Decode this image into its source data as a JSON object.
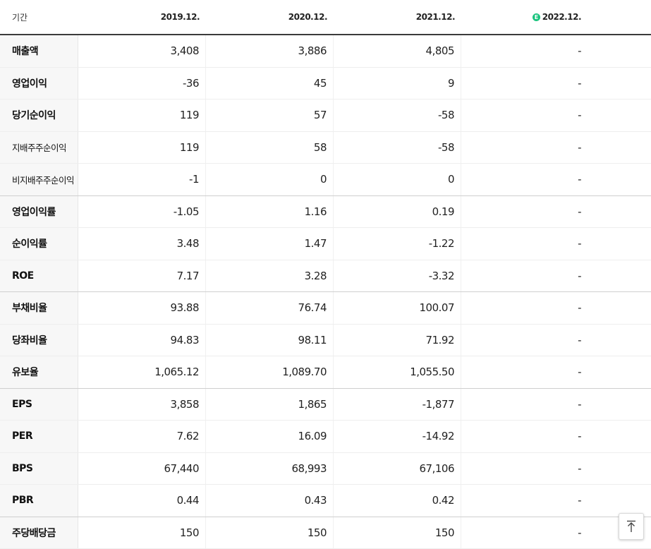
{
  "header": {
    "label": "기간",
    "periods": [
      "2019.12.",
      "2020.12.",
      "2021.12.",
      "2022.12."
    ],
    "estimate_badge": "E"
  },
  "rows": [
    {
      "label": "매출액",
      "values": [
        "3,408",
        "3,886",
        "4,805",
        "-"
      ]
    },
    {
      "label": "영업이익",
      "values": [
        "-36",
        "45",
        "9",
        "-"
      ]
    },
    {
      "label": "당기순이익",
      "values": [
        "119",
        "57",
        "-58",
        "-"
      ]
    },
    {
      "label": "지배주주순이익",
      "values": [
        "119",
        "58",
        "-58",
        "-"
      ]
    },
    {
      "label": "비지배주주순이익",
      "values": [
        "-1",
        "0",
        "0",
        "-"
      ]
    },
    {
      "label": "영업이익률",
      "values": [
        "-1.05",
        "1.16",
        "0.19",
        "-"
      ]
    },
    {
      "label": "순이익률",
      "values": [
        "3.48",
        "1.47",
        "-1.22",
        "-"
      ]
    },
    {
      "label": "ROE",
      "values": [
        "7.17",
        "3.28",
        "-3.32",
        "-"
      ]
    },
    {
      "label": "부채비율",
      "values": [
        "93.88",
        "76.74",
        "100.07",
        "-"
      ]
    },
    {
      "label": "당좌비율",
      "values": [
        "94.83",
        "98.11",
        "71.92",
        "-"
      ]
    },
    {
      "label": "유보율",
      "values": [
        "1,065.12",
        "1,089.70",
        "1,055.50",
        "-"
      ]
    },
    {
      "label": "EPS",
      "values": [
        "3,858",
        "1,865",
        "-1,877",
        "-"
      ]
    },
    {
      "label": "PER",
      "values": [
        "7.62",
        "16.09",
        "-14.92",
        "-"
      ]
    },
    {
      "label": "BPS",
      "values": [
        "67,440",
        "68,993",
        "67,106",
        "-"
      ]
    },
    {
      "label": "PBR",
      "values": [
        "0.44",
        "0.43",
        "0.42",
        "-"
      ]
    },
    {
      "label": "주당배당금",
      "values": [
        "150",
        "150",
        "150",
        "-"
      ]
    }
  ],
  "colors": {
    "negative": "#2d7fd6",
    "estimate_badge": "#19c37d"
  },
  "icons": {
    "scroll_top": "arrow-up-to-line-icon"
  }
}
